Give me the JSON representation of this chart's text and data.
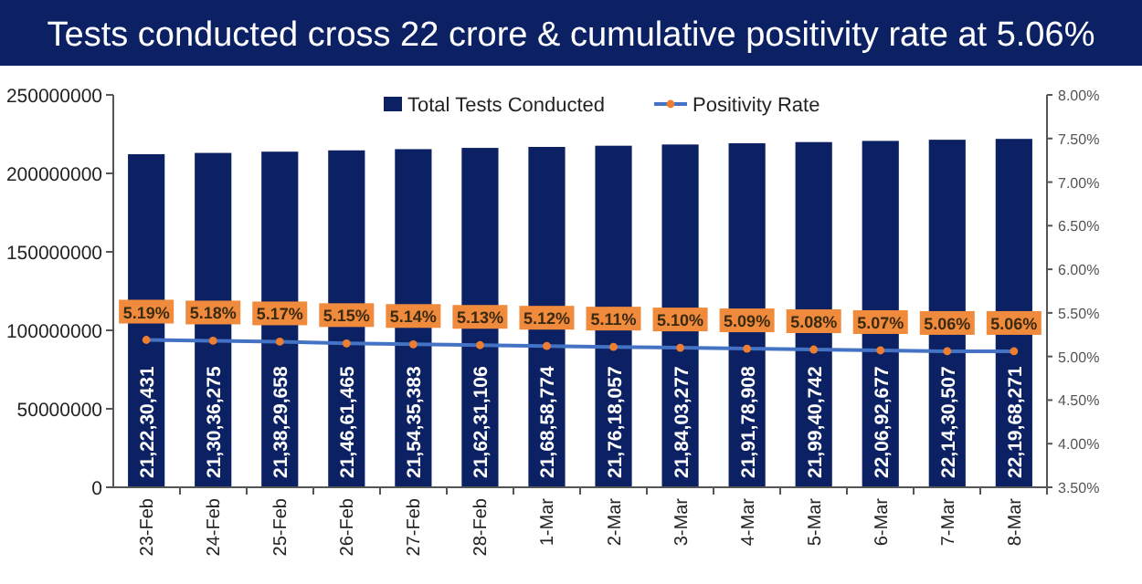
{
  "chart_data": {
    "type": "bar",
    "title": "Tests conducted cross 22 crore & cumulative positivity rate at 5.06%",
    "categories": [
      "23-Feb",
      "24-Feb",
      "25-Feb",
      "26-Feb",
      "27-Feb",
      "28-Feb",
      "1-Mar",
      "2-Mar",
      "3-Mar",
      "4-Mar",
      "5-Mar",
      "6-Mar",
      "7-Mar",
      "8-Mar"
    ],
    "series": [
      {
        "name": "Total Tests Conducted",
        "color": "#0b2163",
        "values": [
          212230431,
          213036275,
          213829658,
          214661465,
          215435383,
          216231106,
          216858774,
          217618057,
          218403277,
          219178908,
          219940742,
          220692677,
          221430507,
          221968271
        ],
        "value_labels": [
          "21,22,30,431",
          "21,30,36,275",
          "21,38,29,658",
          "21,46,61,465",
          "21,54,35,383",
          "21,62,31,106",
          "21,68,58,774",
          "21,76,18,057",
          "21,84,03,277",
          "21,91,78,908",
          "21,99,40,742",
          "22,06,92,677",
          "22,14,30,507",
          "22,19,68,271"
        ]
      },
      {
        "name": "Positivity Rate",
        "type": "line",
        "axis": "y2",
        "color": "#4472c4",
        "marker": "circle",
        "values": [
          5.19,
          5.18,
          5.17,
          5.15,
          5.14,
          5.13,
          5.12,
          5.11,
          5.1,
          5.09,
          5.08,
          5.07,
          5.06,
          5.06
        ],
        "value_labels": [
          "5.19%",
          "5.18%",
          "5.17%",
          "5.15%",
          "5.14%",
          "5.13%",
          "5.12%",
          "5.11%",
          "5.10%",
          "5.09%",
          "5.08%",
          "5.07%",
          "5.06%",
          "5.06%"
        ]
      }
    ],
    "ylim": [
      0,
      250000000
    ],
    "yticks": [
      0,
      50000000,
      100000000,
      150000000,
      200000000,
      250000000
    ],
    "y2lim": [
      3.5,
      8
    ],
    "y2ticks": [
      {
        "value": 3.5,
        "label": "3.50%"
      },
      {
        "value": 4,
        "label": "4.00%"
      },
      {
        "value": 4.5,
        "label": "4.50%"
      },
      {
        "value": 5,
        "label": "5.00%"
      },
      {
        "value": 5.5,
        "label": "5.50%"
      },
      {
        "value": 6,
        "label": "6.00%"
      },
      {
        "value": 6.5,
        "label": "6.50%"
      },
      {
        "value": 7,
        "label": "7.00%"
      },
      {
        "value": 7.5,
        "label": "7.50%"
      },
      {
        "value": 8,
        "label": "8.00%"
      }
    ],
    "legend": "top",
    "grid": false
  }
}
